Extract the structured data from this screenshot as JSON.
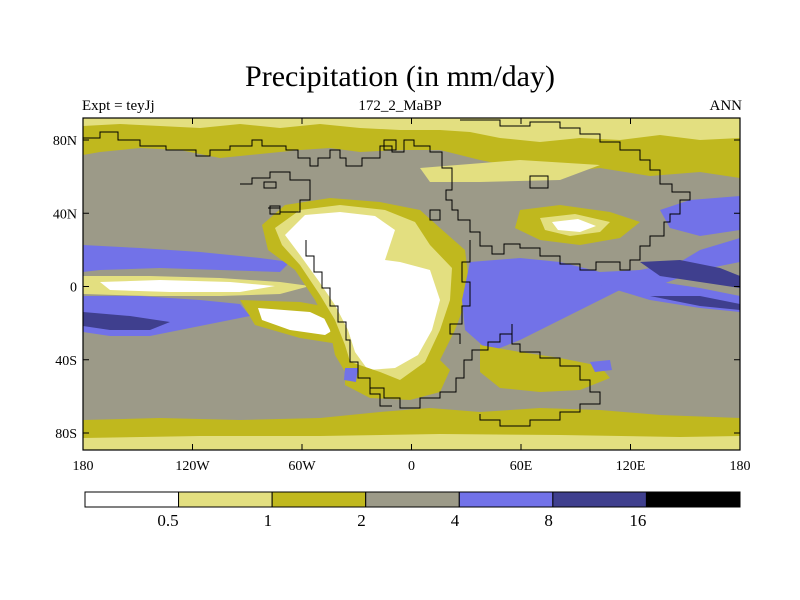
{
  "title": "Precipitation (in mm/day)",
  "left_label": "Expt = teyJj",
  "center_label": "172_2_MaBP",
  "right_label": "ANN",
  "chart_data": {
    "type": "heatmap",
    "variable": "Precipitation",
    "units": "mm/day",
    "x_ticks": [
      "180",
      "120W",
      "60W",
      "0",
      "60E",
      "120E",
      "180"
    ],
    "y_ticks": [
      "80N",
      "40N",
      "0",
      "40S",
      "80S"
    ],
    "colorbar": {
      "levels": [
        "0.5",
        "1",
        "2",
        "4",
        "8",
        "16"
      ],
      "colors": [
        "#ffffff",
        "#e3df80",
        "#c0b81e",
        "#9c9a88",
        "#7272e8",
        "#3f3f8e",
        "#000000"
      ]
    }
  }
}
